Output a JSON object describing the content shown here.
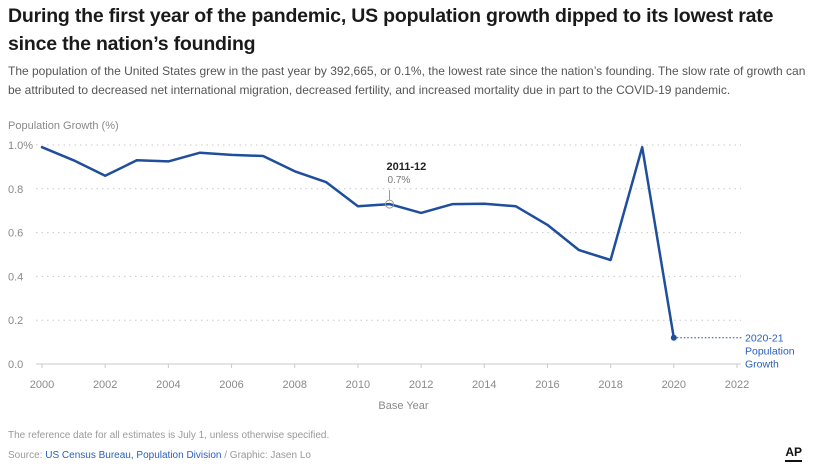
{
  "title": "During the first year of the pandemic, US population growth dipped to its lowest rate since the nation’s founding",
  "subtitle": "The population of the United States grew in the past year by 392,665, or 0.1%, the lowest rate since the nation’s founding. The slow rate of growth can be attributed to decreased net international migration, decreased fertility, and increased mortality due in part to the COVID-19 pandemic.",
  "ylabel": "Population Growth (%)",
  "xlabel": "Base Year",
  "footnote": "The reference date for all estimates is July 1, unless otherwise specified.",
  "source": {
    "prefix": "Source: ",
    "link": "US Census Bureau, Population Division",
    "suffix": " / Graphic: Jasen Lo"
  },
  "logo": "AP",
  "colors": {
    "line": "#1f4e9c",
    "grid": "#c9c9c9",
    "label": "#2a60b8"
  },
  "chart_data": {
    "type": "line",
    "title": "During the first year of the pandemic, US population growth dipped to its lowest rate since the nation’s founding",
    "xlabel": "Base Year",
    "ylabel": "Population Growth (%)",
    "xlim": [
      2000,
      2022
    ],
    "ylim": [
      0,
      1.0
    ],
    "x_ticks": [
      "2000",
      "2002",
      "2004",
      "2006",
      "2008",
      "2010",
      "2012",
      "2014",
      "2016",
      "2018",
      "2020",
      "2022"
    ],
    "y_ticks": [
      "0.0",
      "0.2",
      "0.4",
      "0.6",
      "0.8",
      "1.0%"
    ],
    "y_tick_values": [
      0,
      0.2,
      0.4,
      0.6,
      0.8,
      1.0
    ],
    "grid": true,
    "series": [
      {
        "name": "Population Growth",
        "x": [
          2000,
          2001,
          2002,
          2003,
          2004,
          2005,
          2006,
          2007,
          2008,
          2009,
          2010,
          2011,
          2012,
          2013,
          2014,
          2015,
          2016,
          2017,
          2018,
          2019,
          2020
        ],
        "values": [
          0.99,
          0.93,
          0.86,
          0.93,
          0.925,
          0.965,
          0.955,
          0.95,
          0.88,
          0.83,
          0.72,
          0.73,
          0.69,
          0.73,
          0.732,
          0.72,
          0.635,
          0.52,
          0.475,
          0.99,
          0.12
        ]
      }
    ],
    "annotations": [
      {
        "x": 2011,
        "y": 0.73,
        "title": "2011-12",
        "value": "0.7%"
      }
    ],
    "end_label": {
      "x": 2020,
      "y": 0.12,
      "lines": [
        "2020-21",
        "Population",
        "Growth"
      ]
    }
  }
}
